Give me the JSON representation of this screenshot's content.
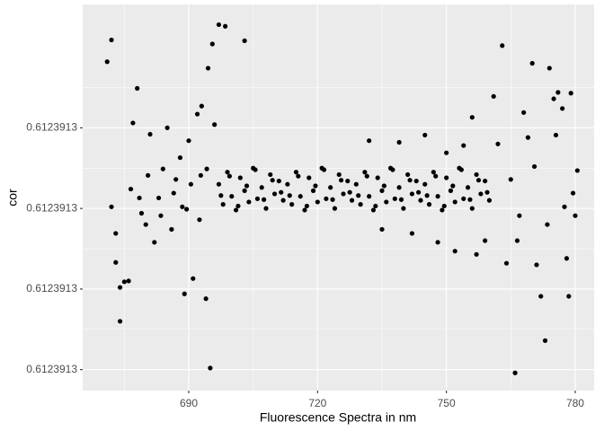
{
  "chart_data": {
    "type": "scatter",
    "x_label": "Fluorescence Spectra in nm",
    "y_label": "cor",
    "xlim": [
      665.3,
      784.4
    ],
    "ylim": [
      0.6123912574,
      0.6123913053
    ],
    "xticks": [
      690,
      720,
      750,
      780
    ],
    "yticks": [
      {
        "value": 0.61239126,
        "label": "0.6123913"
      },
      {
        "value": 0.61239127,
        "label": "0.6123913"
      },
      {
        "value": 0.61239128,
        "label": "0.6123913"
      },
      {
        "value": 0.61239129,
        "label": "0.6123913"
      }
    ],
    "grid": true,
    "color": "#000000",
    "x": [
      671,
      672,
      672,
      673,
      673,
      674,
      674,
      675,
      676,
      677,
      678,
      679,
      680,
      681,
      682,
      683,
      684,
      685,
      686,
      687,
      688,
      689,
      689.5,
      690,
      691,
      692,
      692.5,
      693,
      694,
      695,
      694.5,
      695.5,
      696,
      697,
      698.5,
      703,
      676.5,
      678.5,
      680.5,
      683.5,
      686.5,
      688.5,
      690.5,
      692.8,
      694.2,
      763,
      761,
      766,
      764,
      766.5,
      768,
      770,
      771,
      772,
      773,
      774,
      775,
      776,
      777,
      778,
      778.5,
      779,
      779.5,
      780,
      757,
      756,
      759,
      762,
      765,
      767,
      769,
      770.5,
      773.5,
      775.5,
      777.5,
      780.5,
      752,
      754,
      750,
      748,
      745,
      742,
      739,
      735,
      732,
      697,
      698,
      699,
      700,
      701,
      702,
      703,
      704,
      705,
      706,
      707,
      708,
      709,
      710,
      711,
      712,
      713,
      714,
      715,
      716,
      717,
      718,
      719,
      720,
      721,
      722,
      723,
      724,
      725,
      726,
      727,
      728,
      729,
      730,
      731,
      732,
      733,
      734,
      735,
      736,
      737,
      738,
      739,
      740,
      741,
      742,
      743,
      744,
      745,
      746,
      747,
      748,
      749,
      750,
      751,
      752,
      753,
      754,
      755,
      756,
      757,
      758,
      759,
      760,
      697.5,
      699.5,
      701.5,
      703.5,
      705.5,
      707.5,
      709.5,
      711.5,
      713.5,
      715.5,
      717.5,
      719.5,
      721.5,
      723.5,
      725.5,
      727.5,
      729.5,
      731.5,
      733.5,
      735.5,
      737.5,
      739.5,
      741.5,
      743.5,
      745.5,
      747.5,
      749.5,
      751.5,
      753.5,
      755.5,
      757.5,
      759.5
    ],
    "values": [
      0.6123912982,
      0.6123913009,
      0.6123912802,
      0.6123912769,
      0.6123912733,
      0.6123912702,
      0.612391266,
      0.6123912709,
      0.612391271,
      0.6123912906,
      0.6123912949,
      0.6123912794,
      0.612391278,
      0.6123912892,
      0.6123912758,
      0.6123912813,
      0.6123912849,
      0.61239129,
      0.6123912774,
      0.6123912836,
      0.6123912863,
      0.6123912694,
      0.6123912799,
      0.6123912884,
      0.6123912713,
      0.6123912917,
      0.6123912786,
      0.6123912927,
      0.6123912688,
      0.6123912602,
      0.6123912974,
      0.6123913004,
      0.6123912904,
      0.6123913028,
      0.6123913026,
      0.6123913008,
      0.6123912824,
      0.6123912813,
      0.6123912841,
      0.6123912791,
      0.6123912819,
      0.6123912802,
      0.612391283,
      0.6123912841,
      0.6123912849,
      0.6123913002,
      0.6123912939,
      0.6123912596,
      0.6123912732,
      0.612391276,
      0.6123912919,
      0.612391298,
      0.612391273,
      0.6123912691,
      0.6123912636,
      0.6123912974,
      0.6123912936,
      0.6123912944,
      0.6123912924,
      0.6123912738,
      0.6123912691,
      0.6123912943,
      0.6123912819,
      0.6123912791,
      0.6123912743,
      0.6123912913,
      0.612391276,
      0.612391288,
      0.6123912836,
      0.6123912791,
      0.6123912888,
      0.6123912852,
      0.612391278,
      0.6123912891,
      0.6123912802,
      0.6123912847,
      0.6123912747,
      0.6123912878,
      0.6123912869,
      0.6123912758,
      0.6123912891,
      0.6123912769,
      0.6123912882,
      0.6123912774,
      0.6123912884,
      0.612391283,
      0.6123912805,
      0.6123912845,
      0.6123912815,
      0.6123912798,
      0.6123912838,
      0.6123912822,
      0.6123912808,
      0.612391285,
      0.6123912812,
      0.6123912826,
      0.61239128,
      0.6123912842,
      0.6123912818,
      0.6123912834,
      0.612391281,
      0.612391283,
      0.6123912805,
      0.6123912845,
      0.6123912815,
      0.6123912798,
      0.6123912838,
      0.6123912822,
      0.6123912808,
      0.612391285,
      0.6123912812,
      0.6123912826,
      0.61239128,
      0.6123912842,
      0.6123912818,
      0.6123912834,
      0.612391281,
      0.612391283,
      0.6123912805,
      0.6123912845,
      0.6123912815,
      0.6123912798,
      0.6123912838,
      0.6123912822,
      0.6123912808,
      0.612391285,
      0.6123912812,
      0.6123912826,
      0.61239128,
      0.6123912842,
      0.6123912818,
      0.6123912834,
      0.612391281,
      0.612391283,
      0.6123912805,
      0.6123912845,
      0.6123912815,
      0.6123912798,
      0.6123912838,
      0.6123912822,
      0.6123912808,
      0.612391285,
      0.6123912812,
      0.6123912826,
      0.61239128,
      0.6123912842,
      0.6123912818,
      0.6123912834,
      0.612391281,
      0.6123912816,
      0.612391284,
      0.6123912803,
      0.6123912828,
      0.6123912848,
      0.6123912811,
      0.6123912835,
      0.612391282,
      0.6123912816,
      0.612391284,
      0.6123912803,
      0.6123912828,
      0.6123912848,
      0.6123912811,
      0.6123912835,
      0.612391282,
      0.6123912816,
      0.612391284,
      0.6123912803,
      0.6123912828,
      0.6123912848,
      0.6123912811,
      0.6123912835,
      0.612391282,
      0.6123912816,
      0.612391284,
      0.6123912803,
      0.6123912828,
      0.6123912848,
      0.6123912811,
      0.6123912835,
      0.612391282
    ]
  }
}
